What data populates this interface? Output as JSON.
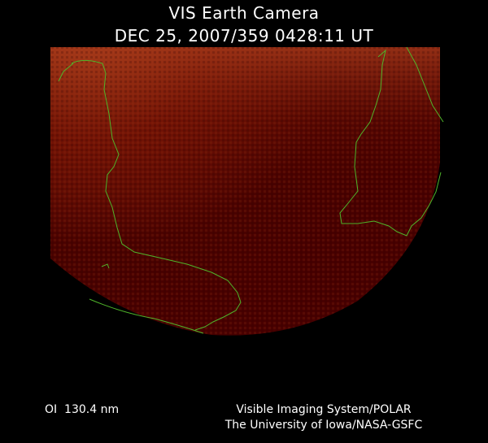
{
  "header": {
    "title": "VIS Earth Camera",
    "timestamp": "DEC 25, 2007/359 0428:11 UT"
  },
  "footer": {
    "wavelength": "OI  130.4 nm",
    "credit_lines": [
      "Visible Imaging System/POLAR",
      "The University of Iowa/NASA-GSFC"
    ]
  }
}
